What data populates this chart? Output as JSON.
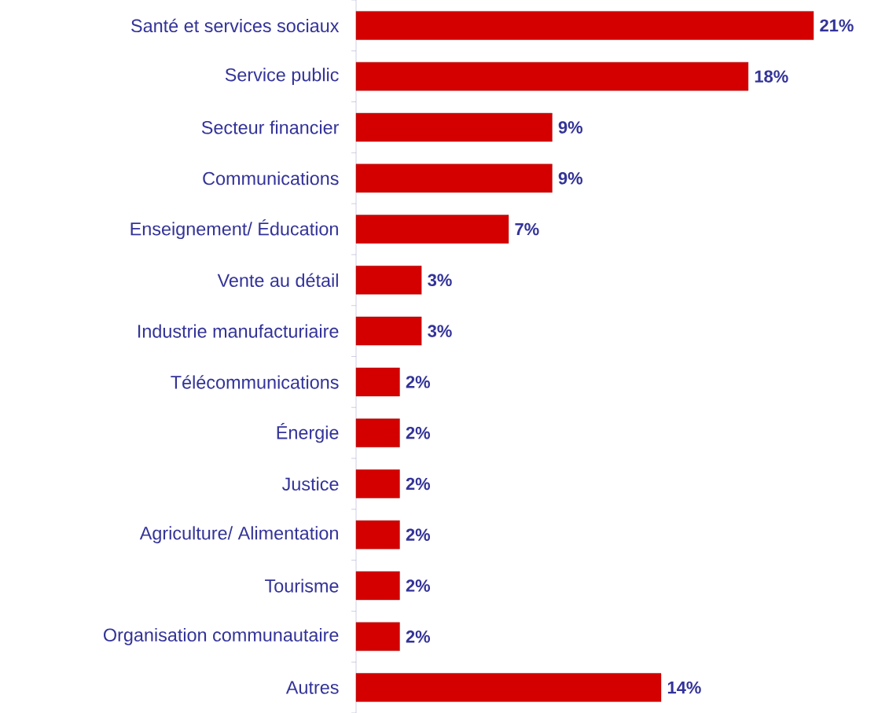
{
  "chart_data": {
    "type": "bar",
    "orientation": "horizontal",
    "color": "#d40000",
    "categories": [
      "Santé et services sociaux",
      "Service public",
      "Secteur financier",
      "Communications",
      "Enseignement/ Éducation",
      "Vente au détail",
      "Industrie manufacturiaire",
      "Télécommunications",
      "Énergie",
      "Justice",
      "Agriculture/ Alimentation",
      "Tourisme",
      "Organisation communautaire",
      "Autres"
    ],
    "values": [
      21,
      18,
      9,
      9,
      7,
      3,
      3,
      2,
      2,
      2,
      2,
      2,
      2,
      14
    ],
    "value_labels": [
      "21%",
      "18%",
      "9%",
      "9%",
      "7%",
      "3%",
      "3%",
      "2%",
      "2%",
      "2%",
      "2%",
      "2%",
      "2%",
      "14%"
    ],
    "grid": false
  }
}
